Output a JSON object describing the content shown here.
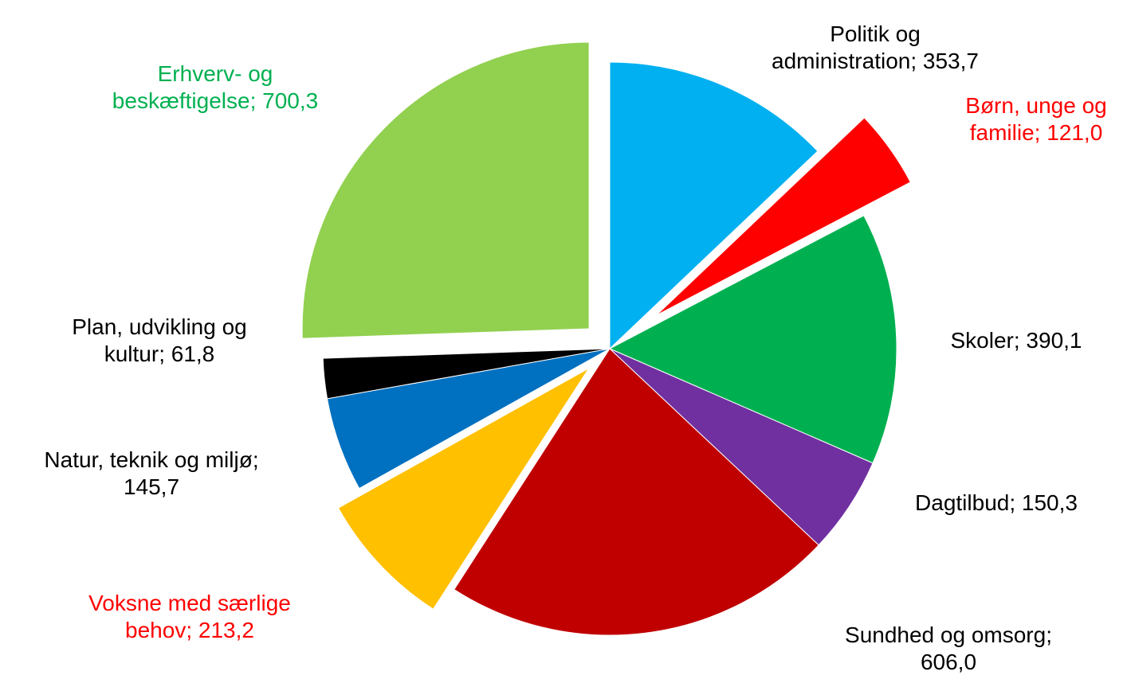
{
  "chart_data": {
    "type": "pie",
    "values": [
      353.7,
      121.0,
      390.1,
      150.3,
      606.0,
      213.2,
      145.7,
      61.8,
      700.3
    ],
    "value_labels": [
      "Politik og\nadministration; 353,7",
      "Børn, unge og\nfamilie; 121,0",
      "Skoler; 390,1",
      "Dagtilbud; 150,3",
      "Sundhed og omsorg;\n606,0",
      "Voksne med særlige\nbehov; 213,2",
      "Natur, teknik og miljø;\n145,7",
      "Plan, udvikling og\nkultur; 61,8",
      "Erhverv- og\nbeskæftigelse; 700,3"
    ],
    "colors": [
      "#00b0f0",
      "#ff0000",
      "#00b050",
      "#7030a0",
      "#c00000",
      "#ffc000",
      "#0070c0",
      "#000000",
      "#92d050"
    ],
    "label_colors": [
      "#000000",
      "#ff0000",
      "#000000",
      "#000000",
      "#000000",
      "#ff0000",
      "#000000",
      "#000000",
      "#00b050"
    ],
    "explode": [
      0,
      0.2,
      0,
      0,
      0,
      0.1,
      0,
      0,
      0.1
    ]
  }
}
